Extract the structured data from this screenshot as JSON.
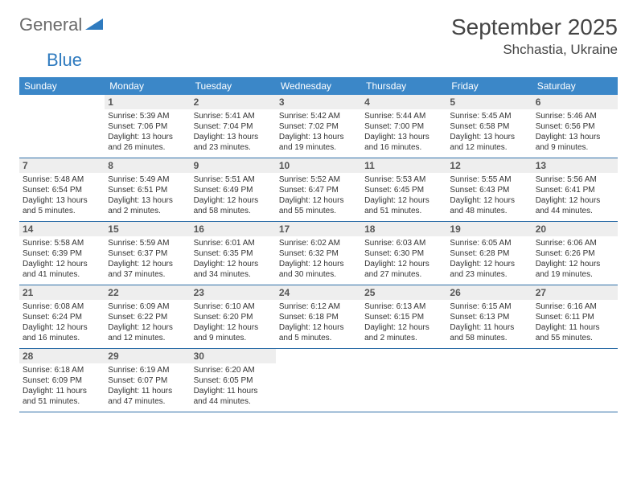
{
  "logo": {
    "word1": "General",
    "word2": "Blue"
  },
  "title": "September 2025",
  "location": "Shchastia, Ukraine",
  "colors": {
    "header_bg": "#3b87c8",
    "header_text": "#ffffff",
    "daynum_bg": "#eeeeee",
    "row_border": "#2f6fa8",
    "logo_gray": "#6a6a6a",
    "logo_blue": "#2f7bbf"
  },
  "day_names": [
    "Sunday",
    "Monday",
    "Tuesday",
    "Wednesday",
    "Thursday",
    "Friday",
    "Saturday"
  ],
  "weeks": [
    [
      null,
      {
        "n": "1",
        "sr": "Sunrise: 5:39 AM",
        "ss": "Sunset: 7:06 PM",
        "dl": "Daylight: 13 hours and 26 minutes."
      },
      {
        "n": "2",
        "sr": "Sunrise: 5:41 AM",
        "ss": "Sunset: 7:04 PM",
        "dl": "Daylight: 13 hours and 23 minutes."
      },
      {
        "n": "3",
        "sr": "Sunrise: 5:42 AM",
        "ss": "Sunset: 7:02 PM",
        "dl": "Daylight: 13 hours and 19 minutes."
      },
      {
        "n": "4",
        "sr": "Sunrise: 5:44 AM",
        "ss": "Sunset: 7:00 PM",
        "dl": "Daylight: 13 hours and 16 minutes."
      },
      {
        "n": "5",
        "sr": "Sunrise: 5:45 AM",
        "ss": "Sunset: 6:58 PM",
        "dl": "Daylight: 13 hours and 12 minutes."
      },
      {
        "n": "6",
        "sr": "Sunrise: 5:46 AM",
        "ss": "Sunset: 6:56 PM",
        "dl": "Daylight: 13 hours and 9 minutes."
      }
    ],
    [
      {
        "n": "7",
        "sr": "Sunrise: 5:48 AM",
        "ss": "Sunset: 6:54 PM",
        "dl": "Daylight: 13 hours and 5 minutes."
      },
      {
        "n": "8",
        "sr": "Sunrise: 5:49 AM",
        "ss": "Sunset: 6:51 PM",
        "dl": "Daylight: 13 hours and 2 minutes."
      },
      {
        "n": "9",
        "sr": "Sunrise: 5:51 AM",
        "ss": "Sunset: 6:49 PM",
        "dl": "Daylight: 12 hours and 58 minutes."
      },
      {
        "n": "10",
        "sr": "Sunrise: 5:52 AM",
        "ss": "Sunset: 6:47 PM",
        "dl": "Daylight: 12 hours and 55 minutes."
      },
      {
        "n": "11",
        "sr": "Sunrise: 5:53 AM",
        "ss": "Sunset: 6:45 PM",
        "dl": "Daylight: 12 hours and 51 minutes."
      },
      {
        "n": "12",
        "sr": "Sunrise: 5:55 AM",
        "ss": "Sunset: 6:43 PM",
        "dl": "Daylight: 12 hours and 48 minutes."
      },
      {
        "n": "13",
        "sr": "Sunrise: 5:56 AM",
        "ss": "Sunset: 6:41 PM",
        "dl": "Daylight: 12 hours and 44 minutes."
      }
    ],
    [
      {
        "n": "14",
        "sr": "Sunrise: 5:58 AM",
        "ss": "Sunset: 6:39 PM",
        "dl": "Daylight: 12 hours and 41 minutes."
      },
      {
        "n": "15",
        "sr": "Sunrise: 5:59 AM",
        "ss": "Sunset: 6:37 PM",
        "dl": "Daylight: 12 hours and 37 minutes."
      },
      {
        "n": "16",
        "sr": "Sunrise: 6:01 AM",
        "ss": "Sunset: 6:35 PM",
        "dl": "Daylight: 12 hours and 34 minutes."
      },
      {
        "n": "17",
        "sr": "Sunrise: 6:02 AM",
        "ss": "Sunset: 6:32 PM",
        "dl": "Daylight: 12 hours and 30 minutes."
      },
      {
        "n": "18",
        "sr": "Sunrise: 6:03 AM",
        "ss": "Sunset: 6:30 PM",
        "dl": "Daylight: 12 hours and 27 minutes."
      },
      {
        "n": "19",
        "sr": "Sunrise: 6:05 AM",
        "ss": "Sunset: 6:28 PM",
        "dl": "Daylight: 12 hours and 23 minutes."
      },
      {
        "n": "20",
        "sr": "Sunrise: 6:06 AM",
        "ss": "Sunset: 6:26 PM",
        "dl": "Daylight: 12 hours and 19 minutes."
      }
    ],
    [
      {
        "n": "21",
        "sr": "Sunrise: 6:08 AM",
        "ss": "Sunset: 6:24 PM",
        "dl": "Daylight: 12 hours and 16 minutes."
      },
      {
        "n": "22",
        "sr": "Sunrise: 6:09 AM",
        "ss": "Sunset: 6:22 PM",
        "dl": "Daylight: 12 hours and 12 minutes."
      },
      {
        "n": "23",
        "sr": "Sunrise: 6:10 AM",
        "ss": "Sunset: 6:20 PM",
        "dl": "Daylight: 12 hours and 9 minutes."
      },
      {
        "n": "24",
        "sr": "Sunrise: 6:12 AM",
        "ss": "Sunset: 6:18 PM",
        "dl": "Daylight: 12 hours and 5 minutes."
      },
      {
        "n": "25",
        "sr": "Sunrise: 6:13 AM",
        "ss": "Sunset: 6:15 PM",
        "dl": "Daylight: 12 hours and 2 minutes."
      },
      {
        "n": "26",
        "sr": "Sunrise: 6:15 AM",
        "ss": "Sunset: 6:13 PM",
        "dl": "Daylight: 11 hours and 58 minutes."
      },
      {
        "n": "27",
        "sr": "Sunrise: 6:16 AM",
        "ss": "Sunset: 6:11 PM",
        "dl": "Daylight: 11 hours and 55 minutes."
      }
    ],
    [
      {
        "n": "28",
        "sr": "Sunrise: 6:18 AM",
        "ss": "Sunset: 6:09 PM",
        "dl": "Daylight: 11 hours and 51 minutes."
      },
      {
        "n": "29",
        "sr": "Sunrise: 6:19 AM",
        "ss": "Sunset: 6:07 PM",
        "dl": "Daylight: 11 hours and 47 minutes."
      },
      {
        "n": "30",
        "sr": "Sunrise: 6:20 AM",
        "ss": "Sunset: 6:05 PM",
        "dl": "Daylight: 11 hours and 44 minutes."
      },
      null,
      null,
      null,
      null
    ]
  ]
}
